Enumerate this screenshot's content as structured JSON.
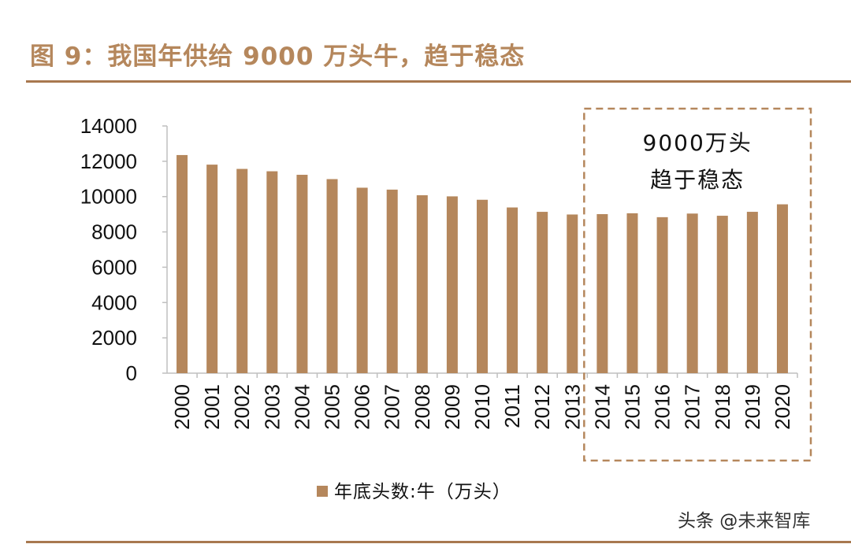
{
  "figure": {
    "title": "图 9：我国年供给 9000 万头牛，趋于稳态"
  },
  "chart_data": {
    "type": "bar",
    "categories": [
      "2000",
      "2001",
      "2002",
      "2003",
      "2004",
      "2005",
      "2006",
      "2007",
      "2008",
      "2009",
      "2010",
      "2011",
      "2012",
      "2013",
      "2014",
      "2015",
      "2016",
      "2017",
      "2018",
      "2019",
      "2020"
    ],
    "series": [
      {
        "name": "年底头数:牛（万头）",
        "color": "#b5875c",
        "values": [
          12353,
          11810,
          11568,
          11434,
          11235,
          10990,
          10503,
          10395,
          10076,
          10013,
          9820,
          9384,
          9137,
          8986,
          9007,
          9056,
          8834,
          9039,
          8915,
          9138,
          9562
        ]
      }
    ],
    "ylim": [
      0,
      14000
    ],
    "yticks": [
      0,
      2000,
      4000,
      6000,
      8000,
      10000,
      12000,
      14000
    ],
    "xlabel": "",
    "ylabel": "",
    "legend": "bottom",
    "grid": false,
    "annotation": {
      "line1": "9000万头",
      "line2": "趋于稳态",
      "highlight_range": [
        "2014",
        "2020"
      ]
    }
  },
  "watermark": {
    "prefix": "头条 @",
    "brand": "未来智库"
  }
}
